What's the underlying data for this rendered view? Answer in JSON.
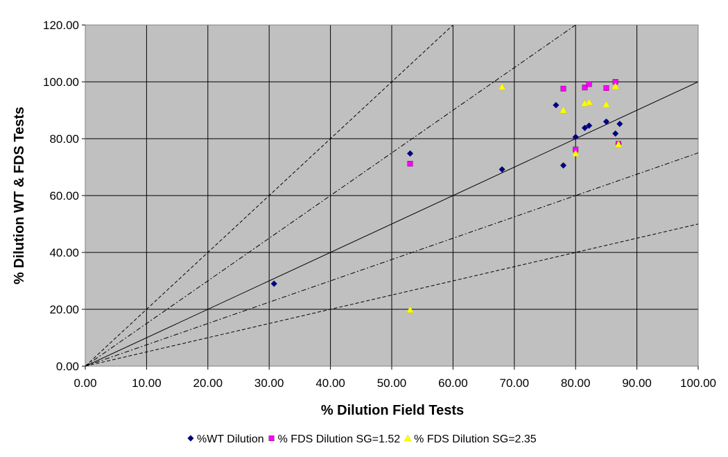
{
  "chart_data": {
    "type": "scatter",
    "title": "",
    "xlabel": "% Dilution Field Tests",
    "ylabel": "% Dilution WT & FDS Tests",
    "xlim": [
      0,
      100
    ],
    "ylim": [
      0,
      120
    ],
    "x_ticks": [
      "0.00",
      "10.00",
      "20.00",
      "30.00",
      "40.00",
      "50.00",
      "60.00",
      "70.00",
      "80.00",
      "90.00",
      "100.00"
    ],
    "y_ticks": [
      "0.00",
      "20.00",
      "40.00",
      "60.00",
      "80.00",
      "100.00",
      "120.00"
    ],
    "grid": true,
    "plot_background": "#c0c0c0",
    "legend_position": "bottom",
    "reference_lines": [
      {
        "slope": 2.0,
        "style": "dashed"
      },
      {
        "slope": 1.5,
        "style": "dashdot"
      },
      {
        "slope": 1.0,
        "style": "solid"
      },
      {
        "slope": 0.75,
        "style": "dashdot"
      },
      {
        "slope": 0.5,
        "style": "dashed"
      }
    ],
    "series": [
      {
        "name": "%WT Dilution",
        "marker": "diamond",
        "color": "#000080",
        "points": [
          [
            30.8,
            29.0
          ],
          [
            53.0,
            74.8
          ],
          [
            68.0,
            69.2
          ],
          [
            76.8,
            91.8
          ],
          [
            78.0,
            70.6
          ],
          [
            80.0,
            80.6
          ],
          [
            81.5,
            83.8
          ],
          [
            82.2,
            84.6
          ],
          [
            85.0,
            86.0
          ],
          [
            86.5,
            81.8
          ],
          [
            87.2,
            85.2
          ],
          [
            87.0,
            78.2
          ]
        ]
      },
      {
        "name": "% FDS Dilution SG=1.52",
        "marker": "square",
        "color": "#ff00ff",
        "points": [
          [
            53.0,
            71.2
          ],
          [
            78.0,
            97.6
          ],
          [
            80.0,
            76.2
          ],
          [
            81.5,
            98.0
          ],
          [
            82.2,
            99.2
          ],
          [
            85.0,
            97.8
          ],
          [
            86.5,
            100.0
          ],
          [
            87.0,
            78.2
          ]
        ]
      },
      {
        "name": "% FDS Dilution SG=2.35",
        "marker": "triangle",
        "color": "#ffff00",
        "points": [
          [
            53.0,
            19.8
          ],
          [
            68.0,
            98.2
          ],
          [
            78.0,
            90.0
          ],
          [
            80.0,
            74.8
          ],
          [
            81.5,
            92.4
          ],
          [
            82.2,
            92.8
          ],
          [
            85.0,
            92.0
          ],
          [
            86.5,
            98.4
          ],
          [
            87.0,
            78.0
          ]
        ]
      }
    ]
  }
}
